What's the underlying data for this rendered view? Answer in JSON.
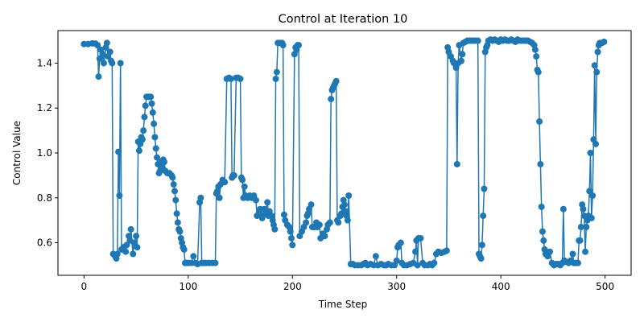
{
  "chart_data": {
    "type": "line",
    "title": "Control at Iteration 10",
    "xlabel": "Time Step",
    "ylabel": "Control Value",
    "xlim": [
      -25,
      525
    ],
    "ylim": [
      0.455,
      1.545
    ],
    "xticks": [
      0,
      100,
      200,
      300,
      400,
      500
    ],
    "yticks": [
      0.6,
      0.8,
      1.0,
      1.2,
      1.4
    ],
    "ytick_labels": [
      "0.6",
      "0.8",
      "1.0",
      "1.2",
      "1.4"
    ],
    "grid": false,
    "legend": "none",
    "color": "#1f77b4",
    "markers": true,
    "series": [
      {
        "points": [
          [
            0,
            1.485
          ],
          [
            4,
            1.485
          ],
          [
            8,
            1.488
          ],
          [
            11,
            1.487
          ],
          [
            13,
            1.48
          ],
          [
            14,
            1.34
          ],
          [
            15,
            1.42
          ],
          [
            16,
            1.46
          ],
          [
            18,
            1.44
          ],
          [
            19,
            1.4
          ],
          [
            21,
            1.47
          ],
          [
            22,
            1.49
          ],
          [
            23,
            1.43
          ],
          [
            25,
            1.45
          ],
          [
            26,
            1.41
          ],
          [
            27,
            1.4
          ],
          [
            28,
            0.55
          ],
          [
            30,
            0.54
          ],
          [
            31,
            0.53
          ],
          [
            32,
            0.55
          ],
          [
            33,
            1.005
          ],
          [
            34,
            0.81
          ],
          [
            35,
            1.4
          ],
          [
            36,
            0.57
          ],
          [
            38,
            0.58
          ],
          [
            40,
            0.56
          ],
          [
            41,
            0.59
          ],
          [
            43,
            0.63
          ],
          [
            44,
            0.61
          ],
          [
            45,
            0.66
          ],
          [
            47,
            0.55
          ],
          [
            48,
            0.6
          ],
          [
            50,
            0.63
          ],
          [
            51,
            0.58
          ],
          [
            52,
            1.05
          ],
          [
            53,
            1.01
          ],
          [
            54,
            1.04
          ],
          [
            55,
            1.07
          ],
          [
            56,
            1.06
          ],
          [
            57,
            1.1
          ],
          [
            58,
            1.16
          ],
          [
            59,
            1.21
          ],
          [
            60,
            1.25
          ],
          [
            62,
            1.25
          ],
          [
            64,
            1.25
          ],
          [
            65,
            1.22
          ],
          [
            66,
            1.18
          ],
          [
            67,
            1.13
          ],
          [
            68,
            1.07
          ],
          [
            69,
            1.02
          ],
          [
            70,
            0.98
          ],
          [
            71,
            0.95
          ],
          [
            72,
            0.91
          ],
          [
            73,
            0.92
          ],
          [
            74,
            0.96
          ],
          [
            75,
            0.94
          ],
          [
            76,
            0.97
          ],
          [
            77,
            0.96
          ],
          [
            78,
            0.92
          ],
          [
            80,
            0.91
          ],
          [
            82,
            0.91
          ],
          [
            84,
            0.9
          ],
          [
            85,
            0.89
          ],
          [
            86,
            0.86
          ],
          [
            87,
            0.83
          ],
          [
            88,
            0.79
          ],
          [
            89,
            0.73
          ],
          [
            90,
            0.69
          ],
          [
            91,
            0.66
          ],
          [
            92,
            0.65
          ],
          [
            93,
            0.62
          ],
          [
            94,
            0.6
          ],
          [
            95,
            0.58
          ],
          [
            96,
            0.57
          ],
          [
            97,
            0.51
          ],
          [
            98,
            0.51
          ],
          [
            100,
            0.51
          ],
          [
            103,
            0.51
          ],
          [
            105,
            0.54
          ],
          [
            107,
            0.51
          ],
          [
            109,
            0.505
          ],
          [
            111,
            0.78
          ],
          [
            112,
            0.8
          ],
          [
            113,
            0.51
          ],
          [
            115,
            0.51
          ],
          [
            117,
            0.51
          ],
          [
            120,
            0.51
          ],
          [
            123,
            0.51
          ],
          [
            126,
            0.51
          ],
          [
            127,
            0.82
          ],
          [
            128,
            0.83
          ],
          [
            129,
            0.85
          ],
          [
            130,
            0.8
          ],
          [
            131,
            0.86
          ],
          [
            133,
            0.88
          ],
          [
            135,
            0.87
          ],
          [
            137,
            1.33
          ],
          [
            139,
            1.335
          ],
          [
            141,
            1.33
          ],
          [
            142,
            0.89
          ],
          [
            143,
            0.9
          ],
          [
            144,
            0.9
          ],
          [
            146,
            1.335
          ],
          [
            148,
            1.335
          ],
          [
            150,
            1.33
          ],
          [
            151,
            0.89
          ],
          [
            152,
            0.88
          ],
          [
            153,
            0.8
          ],
          [
            154,
            0.85
          ],
          [
            155,
            0.81
          ],
          [
            157,
            0.8
          ],
          [
            159,
            0.81
          ],
          [
            161,
            0.8
          ],
          [
            163,
            0.81
          ],
          [
            165,
            0.79
          ],
          [
            166,
            0.72
          ],
          [
            168,
            0.74
          ],
          [
            169,
            0.75
          ],
          [
            170,
            0.72
          ],
          [
            171,
            0.71
          ],
          [
            173,
            0.75
          ],
          [
            174,
            0.73
          ],
          [
            176,
            0.78
          ],
          [
            177,
            0.72
          ],
          [
            178,
            0.74
          ],
          [
            180,
            0.72
          ],
          [
            181,
            0.7
          ],
          [
            182,
            0.68
          ],
          [
            183,
            0.66
          ],
          [
            184,
            1.33
          ],
          [
            185,
            1.36
          ],
          [
            186,
            1.49
          ],
          [
            188,
            1.49
          ],
          [
            190,
            1.49
          ],
          [
            191,
            1.48
          ],
          [
            192,
            0.725
          ],
          [
            193,
            0.7
          ],
          [
            195,
            0.68
          ],
          [
            197,
            0.67
          ],
          [
            198,
            0.65
          ],
          [
            199,
            0.62
          ],
          [
            200,
            0.59
          ],
          [
            202,
            1.44
          ],
          [
            203,
            1.47
          ],
          [
            204,
            1.46
          ],
          [
            205,
            1.48
          ],
          [
            206,
            1.48
          ],
          [
            207,
            0.63
          ],
          [
            209,
            0.65
          ],
          [
            211,
            0.67
          ],
          [
            213,
            0.69
          ],
          [
            214,
            0.72
          ],
          [
            215,
            0.73
          ],
          [
            216,
            0.75
          ],
          [
            218,
            0.77
          ],
          [
            219,
            0.67
          ],
          [
            221,
            0.67
          ],
          [
            223,
            0.69
          ],
          [
            224,
            0.67
          ],
          [
            226,
            0.68
          ],
          [
            227,
            0.62
          ],
          [
            229,
            0.64
          ],
          [
            231,
            0.63
          ],
          [
            233,
            0.66
          ],
          [
            234,
            0.68
          ],
          [
            236,
            0.69
          ],
          [
            237,
            1.24
          ],
          [
            238,
            1.28
          ],
          [
            239,
            1.29
          ],
          [
            240,
            1.3
          ],
          [
            241,
            1.31
          ],
          [
            242,
            1.32
          ],
          [
            243,
            0.7
          ],
          [
            244,
            0.69
          ],
          [
            246,
            0.72
          ],
          [
            247,
            0.73
          ],
          [
            248,
            0.76
          ],
          [
            249,
            0.79
          ],
          [
            250,
            0.77
          ],
          [
            251,
            0.74
          ],
          [
            252,
            0.72
          ],
          [
            253,
            0.7
          ],
          [
            254,
            0.81
          ],
          [
            256,
            0.505
          ],
          [
            258,
            0.505
          ],
          [
            260,
            0.5
          ],
          [
            263,
            0.5
          ],
          [
            266,
            0.5
          ],
          [
            268,
            0.505
          ],
          [
            270,
            0.51
          ],
          [
            272,
            0.5
          ],
          [
            275,
            0.505
          ],
          [
            278,
            0.5
          ],
          [
            280,
            0.54
          ],
          [
            282,
            0.5
          ],
          [
            285,
            0.505
          ],
          [
            288,
            0.5
          ],
          [
            290,
            0.5
          ],
          [
            292,
            0.505
          ],
          [
            295,
            0.5
          ],
          [
            298,
            0.5
          ],
          [
            300,
            0.52
          ],
          [
            301,
            0.58
          ],
          [
            302,
            0.59
          ],
          [
            304,
            0.6
          ],
          [
            305,
            0.51
          ],
          [
            307,
            0.5
          ],
          [
            310,
            0.5
          ],
          [
            313,
            0.505
          ],
          [
            316,
            0.51
          ],
          [
            318,
            0.56
          ],
          [
            319,
            0.61
          ],
          [
            320,
            0.5
          ],
          [
            321,
            0.62
          ],
          [
            323,
            0.62
          ],
          [
            325,
            0.51
          ],
          [
            327,
            0.5
          ],
          [
            330,
            0.5
          ],
          [
            332,
            0.505
          ],
          [
            334,
            0.5
          ],
          [
            336,
            0.51
          ],
          [
            338,
            0.55
          ],
          [
            340,
            0.56
          ],
          [
            343,
            0.555
          ],
          [
            346,
            0.56
          ],
          [
            348,
            0.565
          ],
          [
            349,
            1.47
          ],
          [
            350,
            1.45
          ],
          [
            352,
            1.43
          ],
          [
            354,
            1.41
          ],
          [
            355,
            1.4
          ],
          [
            357,
            1.38
          ],
          [
            358,
            0.95
          ],
          [
            359,
            1.4
          ],
          [
            360,
            1.48
          ],
          [
            362,
            1.41
          ],
          [
            363,
            1.44
          ],
          [
            364,
            1.49
          ],
          [
            366,
            1.495
          ],
          [
            368,
            1.5
          ],
          [
            370,
            1.5
          ],
          [
            372,
            1.5
          ],
          [
            374,
            1.5
          ],
          [
            376,
            1.5
          ],
          [
            378,
            1.5
          ],
          [
            379,
            0.55
          ],
          [
            380,
            0.54
          ],
          [
            381,
            0.53
          ],
          [
            382,
            0.59
          ],
          [
            383,
            0.72
          ],
          [
            384,
            0.84
          ],
          [
            385,
            1.45
          ],
          [
            386,
            1.47
          ],
          [
            387,
            1.48
          ],
          [
            388,
            1.5
          ],
          [
            390,
            1.505
          ],
          [
            392,
            1.5
          ],
          [
            394,
            1.505
          ],
          [
            396,
            1.5
          ],
          [
            398,
            1.495
          ],
          [
            400,
            1.505
          ],
          [
            402,
            1.5
          ],
          [
            404,
            1.505
          ],
          [
            406,
            1.5
          ],
          [
            408,
            1.5
          ],
          [
            410,
            1.505
          ],
          [
            412,
            1.5
          ],
          [
            414,
            1.495
          ],
          [
            416,
            1.505
          ],
          [
            418,
            1.5
          ],
          [
            420,
            1.5
          ],
          [
            422,
            1.5
          ],
          [
            424,
            1.5
          ],
          [
            426,
            1.5
          ],
          [
            428,
            1.495
          ],
          [
            430,
            1.49
          ],
          [
            432,
            1.48
          ],
          [
            433,
            1.46
          ],
          [
            434,
            1.43
          ],
          [
            435,
            1.37
          ],
          [
            436,
            1.36
          ],
          [
            437,
            1.14
          ],
          [
            438,
            0.95
          ],
          [
            439,
            0.76
          ],
          [
            440,
            0.65
          ],
          [
            441,
            0.61
          ],
          [
            442,
            0.57
          ],
          [
            443,
            0.55
          ],
          [
            445,
            0.54
          ],
          [
            447,
            0.56
          ],
          [
            449,
            0.51
          ],
          [
            451,
            0.5
          ],
          [
            453,
            0.505
          ],
          [
            455,
            0.505
          ],
          [
            457,
            0.5
          ],
          [
            459,
            0.51
          ],
          [
            460,
            0.75
          ],
          [
            461,
            0.52
          ],
          [
            463,
            0.515
          ],
          [
            465,
            0.51
          ],
          [
            467,
            0.52
          ],
          [
            469,
            0.55
          ],
          [
            470,
            0.51
          ],
          [
            472,
            0.51
          ],
          [
            474,
            0.51
          ],
          [
            475,
            0.61
          ],
          [
            476,
            0.61
          ],
          [
            477,
            0.67
          ],
          [
            478,
            0.77
          ],
          [
            479,
            0.75
          ],
          [
            480,
            0.72
          ],
          [
            481,
            0.56
          ],
          [
            482,
            0.67
          ],
          [
            483,
            0.7
          ],
          [
            484,
            0.72
          ],
          [
            485,
            0.83
          ],
          [
            486,
            1.0
          ],
          [
            487,
            0.71
          ],
          [
            488,
            0.81
          ],
          [
            489,
            1.06
          ],
          [
            490,
            1.39
          ],
          [
            491,
            1.04
          ],
          [
            492,
            1.36
          ],
          [
            493,
            1.45
          ],
          [
            494,
            1.48
          ],
          [
            495,
            1.49
          ],
          [
            497,
            1.49
          ],
          [
            499,
            1.495
          ]
        ]
      }
    ]
  }
}
